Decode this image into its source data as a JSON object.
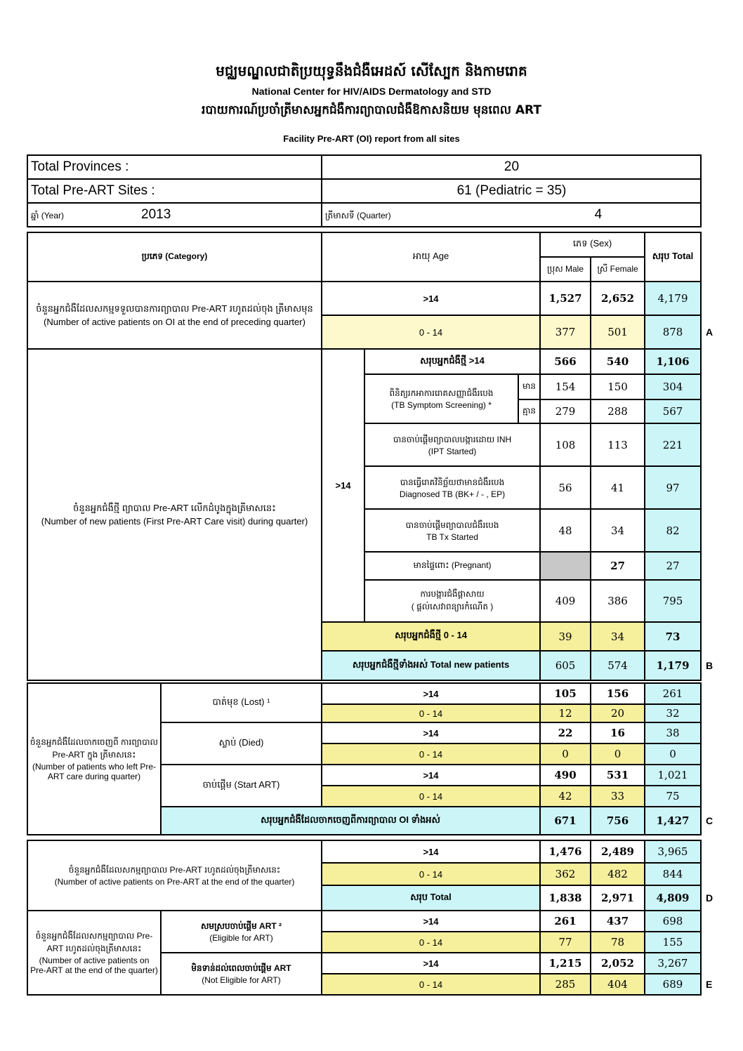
{
  "header": {
    "kh_title": "មជ្ឈមណ្ឌលជាតិប្រយុទ្ធនឹងជំងឺអេដស៍ សើស្បែក និងកាមរោគ",
    "en_title": "National Center for HIV/AIDS Dermatology and STD",
    "kh_subtitle": "របាយការណ៍ប្រចាំត្រីមាសអ្នកជំងឺការព្យាបាលជំងឺឱកាសនិយម មុនពេល ART",
    "report_title": "Facility Pre-ART (OI) report from all sites"
  },
  "info": {
    "provinces_label": "Total Provinces :",
    "provinces_value": "20",
    "sites_label": "Total Pre-ART Sites :",
    "sites_value": "61 (Pediatric = 35)",
    "year_label": "ឆ្នាំ (Year)",
    "year_value": "2013",
    "quarter_label": "ត្រីមាសទី (Quarter)",
    "quarter_value": "4"
  },
  "columns": {
    "category": "ប្រភេទ (Category)",
    "age": "អាយុ Age",
    "sex": "ភេទ (Sex)",
    "male": "ប្រុស Male",
    "female": "ស្រី Female",
    "total": "សរុប Total"
  },
  "section_a": {
    "label_kh": "ចំនួនអ្នកជំងឺដែលសកម្មទទួលបានការព្យាបាល Pre-ART រហូតដល់ចុង ត្រីមាសមុន",
    "label_en": "(Number of active patients on OI at the end of preceding quarter)",
    "letter": "A",
    "rows": [
      {
        "age": ">14",
        "male": "1,527",
        "female": "2,652",
        "total": "4,179"
      },
      {
        "age": "0 - 14",
        "male": "377",
        "female": "501",
        "total": "878"
      }
    ]
  },
  "section_b": {
    "label_kh": "ចំនួនអ្នកជំងឺថ្មី ព្យាបាល Pre-ART លើកដំបូងក្នុងត្រីមាសនេះ",
    "label_en": "(Number of new patients (First Pre-ART Care visit) during quarter)",
    "age": ">14",
    "letter": "B",
    "subtotal_adult": {
      "label": "សរុបអ្នកជំងឺថ្មី >14",
      "male": "566",
      "female": "540",
      "total": "1,106"
    },
    "tb_screening": {
      "label_kh": "ពិនិត្យរកអាការរោគសញ្ញាជំងឺរបេង",
      "label_en": "(TB Symptom Screening) *",
      "yes": {
        "label": "មាន",
        "male": "154",
        "female": "150",
        "total": "304"
      },
      "no": {
        "label": "គ្មាន",
        "male": "279",
        "female": "288",
        "total": "567"
      }
    },
    "ipt": {
      "label_kh": "បានចាប់ផ្តើមព្យាបាលបង្ការដោយ INH",
      "label_en": "(IPT Started)",
      "male": "108",
      "female": "113",
      "total": "221"
    },
    "diagnosed_tb": {
      "label_kh": "បានធ្វើរោគវិនិច្ឆ័យថាមានជំងឺរបេង",
      "label_en": "Diagnosed TB (BK+ / - , EP)",
      "male": "56",
      "female": "41",
      "total": "97"
    },
    "tb_tx": {
      "label_kh": "បានចាប់ផ្តើមព្យាបាលជំងឺរបេង",
      "label_en": "TB Tx Started",
      "male": "48",
      "female": "34",
      "total": "82"
    },
    "pregnant": {
      "label": "មានផ្ទៃពោះ (Pregnant)",
      "female": "27",
      "total": "27"
    },
    "family_planning": {
      "label_kh": "ការបង្ការជំងឺផ្តាសាយ",
      "label_kh2": "( ផ្តល់សេវាពន្យារកំណើត )",
      "male": "409",
      "female": "386",
      "total": "795"
    },
    "subtotal_child": {
      "label": "សរុបអ្នកជំងឺថ្មី 0 - 14",
      "male": "39",
      "female": "34",
      "total": "73"
    },
    "total": {
      "label": "សរុបអ្នកជំងឺថ្មីទាំងអស់ Total new patients",
      "male": "605",
      "female": "574",
      "total": "1,179"
    }
  },
  "section_c": {
    "label_kh": "ចំនួនអ្នកជំងឺដែលចាកចេញពី ការព្យាបាល Pre-ART ក្នុង ត្រីមាសនេះ",
    "label_en": "(Number of patients who left Pre-ART care during quarter)",
    "letter": "C",
    "groups": [
      {
        "label": "បាត់មុខ (Lost) ¹",
        "rows": [
          {
            "age": ">14",
            "male": "105",
            "female": "156",
            "total": "261"
          },
          {
            "age": "0 - 14",
            "male": "12",
            "female": "20",
            "total": "32"
          }
        ]
      },
      {
        "label": "ស្លាប់ (Died)",
        "rows": [
          {
            "age": ">14",
            "male": "22",
            "female": "16",
            "total": "38"
          },
          {
            "age": "0 - 14",
            "male": "0",
            "female": "0",
            "total": "0"
          }
        ]
      },
      {
        "label": "ចាប់ផ្តើម (Start ART)",
        "rows": [
          {
            "age": ">14",
            "male": "490",
            "female": "531",
            "total": "1,021"
          },
          {
            "age": "0 - 14",
            "male": "42",
            "female": "33",
            "total": "75"
          }
        ]
      }
    ],
    "total": {
      "label": "សរុបអ្នកជំងឺដែលចាកចេញពីការព្យាបាល OI ទាំងអស់",
      "male": "671",
      "female": "756",
      "total": "1,427"
    }
  },
  "section_d": {
    "label_kh": "ចំនួនអ្នកជំងឺដែលសកម្មព្យាបាល Pre-ART រហូតដល់ចុងត្រីមាសនេះ",
    "label_en": "(Number of active patients on Pre-ART at the end of the quarter)",
    "letter": "D",
    "rows": [
      {
        "age": ">14",
        "male": "1,476",
        "female": "2,489",
        "total": "3,965"
      },
      {
        "age": "0 - 14",
        "male": "362",
        "female": "482",
        "total": "844"
      }
    ],
    "total": {
      "label": "សរុប Total",
      "male": "1,838",
      "female": "2,971",
      "total": "4,809"
    }
  },
  "section_e": {
    "label_kh": "ចំនួនអ្នកជំងឺដែលសកម្មព្យាបាល Pre-ART រហូតដល់ចុងត្រីមាសនេះ",
    "label_en": "(Number of active patients on Pre-ART at the end of the quarter)",
    "letter": "E",
    "groups": [
      {
        "label_kh": "សមស្របចាប់ផ្តើម ART ²",
        "label_en": "(Eligible for ART)",
        "rows": [
          {
            "age": ">14",
            "male": "261",
            "female": "437",
            "total": "698"
          },
          {
            "age": "0 - 14",
            "male": "77",
            "female": "78",
            "total": "155"
          }
        ]
      },
      {
        "label_kh": "មិនទាន់ដល់ពេលចាប់ផ្តើម ART",
        "label_en": "(Not Eligible for ART)",
        "rows": [
          {
            "age": ">14",
            "male": "1,215",
            "female": "2,052",
            "total": "3,267"
          },
          {
            "age": "0 - 14",
            "male": "285",
            "female": "404",
            "total": "689"
          }
        ]
      }
    ]
  }
}
